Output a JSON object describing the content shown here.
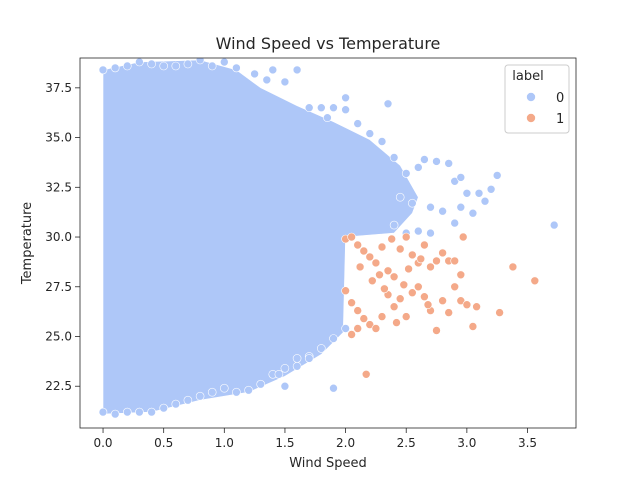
{
  "chart_data": {
    "type": "scatter",
    "title": "Wind Speed vs Temperature",
    "xlabel": "Wind Speed",
    "ylabel": "Temperature",
    "xlim": [
      -0.19,
      3.9
    ],
    "ylim": [
      20.4,
      39.0
    ],
    "x_ticks": [
      "0.0",
      "0.5",
      "1.0",
      "1.5",
      "2.0",
      "2.5",
      "3.0",
      "3.5"
    ],
    "x_tick_values": [
      0,
      0.5,
      1.0,
      1.5,
      2.0,
      2.5,
      3.0,
      3.5
    ],
    "y_ticks": [
      "22.5",
      "25.0",
      "27.5",
      "30.0",
      "32.5",
      "35.0",
      "37.5"
    ],
    "y_tick_values": [
      22.5,
      25.0,
      27.5,
      30.0,
      32.5,
      35.0,
      37.5
    ],
    "grid": false,
    "legend": {
      "title": "label",
      "placement": "top-right"
    },
    "series": [
      {
        "name": "0",
        "color": "#aec7f8",
        "points": [
          [
            0.0,
            38.4
          ],
          [
            0.1,
            38.5
          ],
          [
            0.2,
            38.6
          ],
          [
            0.3,
            38.8
          ],
          [
            0.4,
            38.7
          ],
          [
            0.5,
            38.6
          ],
          [
            0.6,
            38.6
          ],
          [
            0.7,
            38.7
          ],
          [
            0.8,
            38.9
          ],
          [
            0.9,
            38.6
          ],
          [
            1.0,
            38.8
          ],
          [
            1.1,
            38.5
          ],
          [
            0.0,
            21.2
          ],
          [
            0.1,
            21.1
          ],
          [
            0.2,
            21.2
          ],
          [
            0.3,
            21.2
          ],
          [
            0.4,
            21.2
          ],
          [
            0.5,
            21.4
          ],
          [
            0.6,
            21.6
          ],
          [
            0.7,
            21.8
          ],
          [
            0.8,
            22.0
          ],
          [
            0.9,
            22.2
          ],
          [
            1.0,
            22.4
          ],
          [
            1.1,
            22.2
          ],
          [
            1.2,
            22.3
          ],
          [
            1.3,
            22.6
          ],
          [
            1.4,
            23.1
          ],
          [
            1.5,
            23.4
          ],
          [
            1.6,
            23.9
          ],
          [
            1.7,
            24.0
          ],
          [
            1.8,
            24.4
          ],
          [
            1.9,
            24.9
          ],
          [
            2.0,
            25.4
          ],
          [
            1.25,
            38.2
          ],
          [
            1.35,
            37.9
          ],
          [
            1.4,
            38.4
          ],
          [
            1.5,
            37.8
          ],
          [
            1.6,
            38.4
          ],
          [
            1.7,
            36.5
          ],
          [
            1.8,
            36.5
          ],
          [
            1.85,
            36.0
          ],
          [
            1.9,
            36.5
          ],
          [
            2.0,
            37.0
          ],
          [
            2.0,
            36.4
          ],
          [
            2.1,
            35.7
          ],
          [
            2.2,
            35.2
          ],
          [
            2.3,
            34.8
          ],
          [
            2.35,
            36.7
          ],
          [
            2.4,
            34.0
          ],
          [
            2.5,
            33.2
          ],
          [
            2.6,
            33.5
          ],
          [
            2.65,
            33.9
          ],
          [
            2.75,
            33.8
          ],
          [
            2.85,
            33.7
          ],
          [
            2.9,
            32.8
          ],
          [
            2.95,
            33.0
          ],
          [
            3.0,
            32.2
          ],
          [
            3.05,
            31.2
          ],
          [
            3.1,
            32.2
          ],
          [
            3.2,
            32.4
          ],
          [
            3.25,
            33.1
          ],
          [
            3.72,
            30.6
          ],
          [
            2.45,
            32.0
          ],
          [
            2.55,
            31.7
          ],
          [
            2.7,
            31.5
          ],
          [
            2.8,
            31.3
          ],
          [
            2.95,
            31.5
          ],
          [
            3.15,
            31.8
          ],
          [
            2.4,
            30.6
          ],
          [
            2.5,
            30.2
          ],
          [
            2.6,
            30.3
          ],
          [
            2.7,
            30.2
          ],
          [
            2.9,
            30.7
          ],
          [
            1.9,
            22.4
          ],
          [
            1.5,
            22.5
          ],
          [
            1.45,
            23.1
          ],
          [
            1.6,
            23.5
          ],
          [
            1.7,
            23.9
          ]
        ]
      },
      {
        "name": "1",
        "color": "#f4a989",
        "points": [
          [
            2.0,
            29.9
          ],
          [
            2.05,
            30.0
          ],
          [
            2.1,
            29.6
          ],
          [
            2.15,
            29.3
          ],
          [
            2.2,
            29.0
          ],
          [
            2.25,
            28.7
          ],
          [
            2.3,
            29.5
          ],
          [
            2.35,
            28.3
          ],
          [
            2.4,
            28.0
          ],
          [
            2.45,
            29.4
          ],
          [
            2.5,
            30.0
          ],
          [
            2.55,
            29.1
          ],
          [
            2.6,
            28.7
          ],
          [
            2.65,
            29.6
          ],
          [
            2.7,
            28.5
          ],
          [
            2.75,
            28.8
          ],
          [
            2.8,
            29.2
          ],
          [
            2.85,
            28.8
          ],
          [
            2.9,
            28.8
          ],
          [
            2.95,
            28.1
          ],
          [
            2.97,
            30.0
          ],
          [
            2.0,
            27.3
          ],
          [
            2.05,
            26.7
          ],
          [
            2.1,
            26.3
          ],
          [
            2.15,
            25.9
          ],
          [
            2.2,
            25.6
          ],
          [
            2.25,
            25.4
          ],
          [
            2.3,
            26.0
          ],
          [
            2.35,
            27.1
          ],
          [
            2.4,
            26.5
          ],
          [
            2.45,
            26.9
          ],
          [
            2.5,
            26.0
          ],
          [
            2.55,
            27.2
          ],
          [
            2.6,
            27.5
          ],
          [
            2.65,
            27.0
          ],
          [
            2.7,
            26.3
          ],
          [
            2.75,
            25.3
          ],
          [
            2.8,
            26.8
          ],
          [
            2.85,
            26.2
          ],
          [
            2.9,
            27.5
          ],
          [
            2.95,
            26.8
          ],
          [
            3.0,
            26.6
          ],
          [
            3.05,
            25.5
          ],
          [
            3.08,
            26.5
          ],
          [
            3.27,
            26.2
          ],
          [
            3.38,
            28.5
          ],
          [
            3.56,
            27.8
          ],
          [
            2.17,
            23.1
          ],
          [
            2.05,
            25.1
          ],
          [
            2.1,
            25.4
          ],
          [
            2.12,
            28.5
          ],
          [
            2.22,
            27.8
          ],
          [
            2.28,
            28.1
          ],
          [
            2.32,
            27.4
          ],
          [
            2.38,
            29.9
          ],
          [
            2.42,
            25.7
          ],
          [
            2.48,
            27.6
          ],
          [
            2.52,
            28.4
          ],
          [
            2.62,
            28.9
          ],
          [
            2.68,
            26.6
          ]
        ]
      }
    ]
  }
}
